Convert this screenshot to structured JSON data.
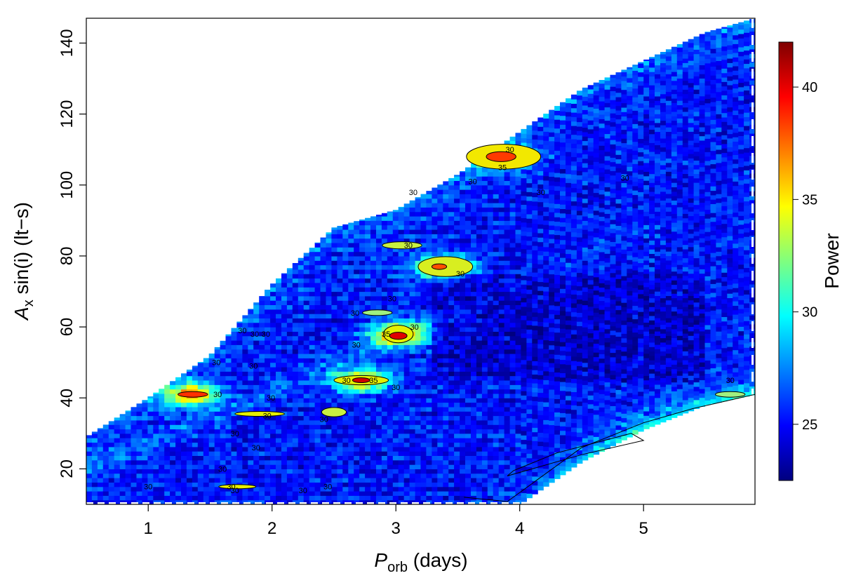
{
  "chart_data": {
    "type": "heatmap",
    "xlabel": {
      "main": "P",
      "sub": "orb",
      "rest": " (days)"
    },
    "ylabel": {
      "main": "A",
      "sub": "x",
      "rest": " sin(i) (lt−s)"
    },
    "xlim": [
      0.5,
      5.9
    ],
    "ylim": [
      10,
      147
    ],
    "xticks": [
      1,
      2,
      3,
      4,
      5
    ],
    "yticks": [
      20,
      40,
      60,
      80,
      100,
      120,
      140
    ],
    "colorbar": {
      "label": "Power",
      "range": [
        22.5,
        42
      ],
      "ticks": [
        25,
        30,
        35,
        40
      ],
      "colormap": [
        "#00007f",
        "#0000ff",
        "#007fff",
        "#00ffff",
        "#7fff7f",
        "#ffff00",
        "#ff7f00",
        "#ff0000",
        "#7f0000"
      ]
    },
    "contour_levels": [
      30,
      35
    ],
    "valid_region": {
      "x_range": [
        0.5,
        5.9
      ],
      "upper_boundary": [
        [
          0.5,
          29
        ],
        [
          1.0,
          40
        ],
        [
          1.5,
          52
        ],
        [
          2.0,
          72
        ],
        [
          2.5,
          88
        ],
        [
          3.0,
          93
        ],
        [
          3.5,
          103
        ],
        [
          4.0,
          115
        ],
        [
          4.5,
          127
        ],
        [
          5.0,
          135
        ],
        [
          5.5,
          143
        ],
        [
          5.9,
          147
        ]
      ],
      "lower_boundary": [
        [
          0.5,
          10
        ],
        [
          4.0,
          10
        ],
        [
          4.5,
          22
        ],
        [
          5.0,
          31
        ],
        [
          5.5,
          38
        ],
        [
          5.9,
          41
        ]
      ]
    },
    "peaks": [
      {
        "x": 3.87,
        "y": 108,
        "power": 38.5
      },
      {
        "x": 3.02,
        "y": 58,
        "power": 39.5
      },
      {
        "x": 2.72,
        "y": 45,
        "power": 38.5
      },
      {
        "x": 3.38,
        "y": 77,
        "power": 37.5
      },
      {
        "x": 1.35,
        "y": 41,
        "power": 38.0
      }
    ],
    "contour_labels": [
      {
        "x": 3.92,
        "y": 110,
        "text": "30"
      },
      {
        "x": 3.86,
        "y": 105,
        "text": "35"
      },
      {
        "x": 3.62,
        "y": 101,
        "text": "30"
      },
      {
        "x": 3.14,
        "y": 98,
        "text": "30"
      },
      {
        "x": 4.17,
        "y": 98,
        "text": "30"
      },
      {
        "x": 4.85,
        "y": 102,
        "text": "30"
      },
      {
        "x": 3.1,
        "y": 83,
        "text": "30"
      },
      {
        "x": 3.52,
        "y": 75,
        "text": "30"
      },
      {
        "x": 2.97,
        "y": 68,
        "text": "30"
      },
      {
        "x": 2.67,
        "y": 64,
        "text": "30"
      },
      {
        "x": 2.92,
        "y": 58,
        "text": "35"
      },
      {
        "x": 3.15,
        "y": 60,
        "text": "30"
      },
      {
        "x": 2.68,
        "y": 55,
        "text": "30"
      },
      {
        "x": 2.6,
        "y": 45,
        "text": "30"
      },
      {
        "x": 2.82,
        "y": 45,
        "text": "35"
      },
      {
        "x": 3.0,
        "y": 43,
        "text": "30"
      },
      {
        "x": 1.76,
        "y": 59,
        "text": "30"
      },
      {
        "x": 1.95,
        "y": 58,
        "text": "30"
      },
      {
        "x": 1.86,
        "y": 58,
        "text": "30"
      },
      {
        "x": 1.55,
        "y": 50,
        "text": "30"
      },
      {
        "x": 1.85,
        "y": 49,
        "text": "30"
      },
      {
        "x": 1.56,
        "y": 41,
        "text": "30"
      },
      {
        "x": 1.99,
        "y": 40,
        "text": "30"
      },
      {
        "x": 1.96,
        "y": 35,
        "text": "30"
      },
      {
        "x": 2.42,
        "y": 34,
        "text": "30"
      },
      {
        "x": 1.7,
        "y": 30,
        "text": "30"
      },
      {
        "x": 1.87,
        "y": 26,
        "text": "30"
      },
      {
        "x": 1.6,
        "y": 20,
        "text": "30"
      },
      {
        "x": 1.67,
        "y": 15,
        "text": "30"
      },
      {
        "x": 1.0,
        "y": 15,
        "text": "30"
      },
      {
        "x": 1.7,
        "y": 14,
        "text": "30"
      },
      {
        "x": 2.45,
        "y": 15,
        "text": "30"
      },
      {
        "x": 2.25,
        "y": 14,
        "text": "30"
      },
      {
        "x": 5.7,
        "y": 45,
        "text": "30"
      }
    ]
  }
}
